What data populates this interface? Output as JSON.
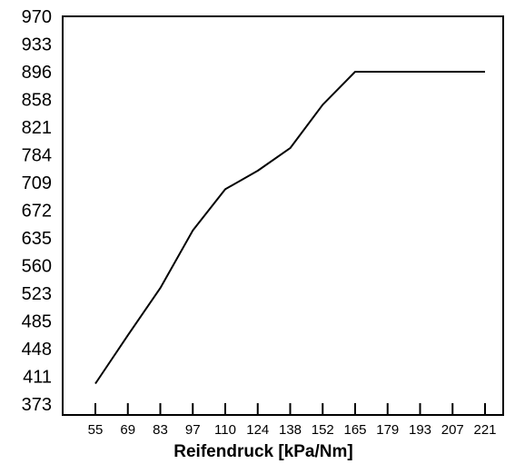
{
  "chart_data": {
    "type": "line",
    "title": "",
    "xlabel": "Reifendruck [kPa/Nm]",
    "ylabel": "",
    "x_ticks": [
      "55",
      "69",
      "83",
      "97",
      "110",
      "124",
      "138",
      "152",
      "165",
      "179",
      "193",
      "207",
      "221"
    ],
    "y_ticks": [
      "970",
      "933",
      "896",
      "858",
      "821",
      "784",
      "709",
      "672",
      "635",
      "560",
      "523",
      "485",
      "448",
      "411",
      "373"
    ],
    "series": [
      {
        "x": [
          55,
          69,
          83,
          97,
          110,
          124,
          138,
          152,
          165,
          179,
          193,
          207,
          221
        ],
        "y": [
          401,
          466,
          530,
          645,
          700,
          741,
          793,
          851,
          896,
          896,
          896,
          896,
          896
        ]
      }
    ],
    "grid": false,
    "legend": "none"
  }
}
